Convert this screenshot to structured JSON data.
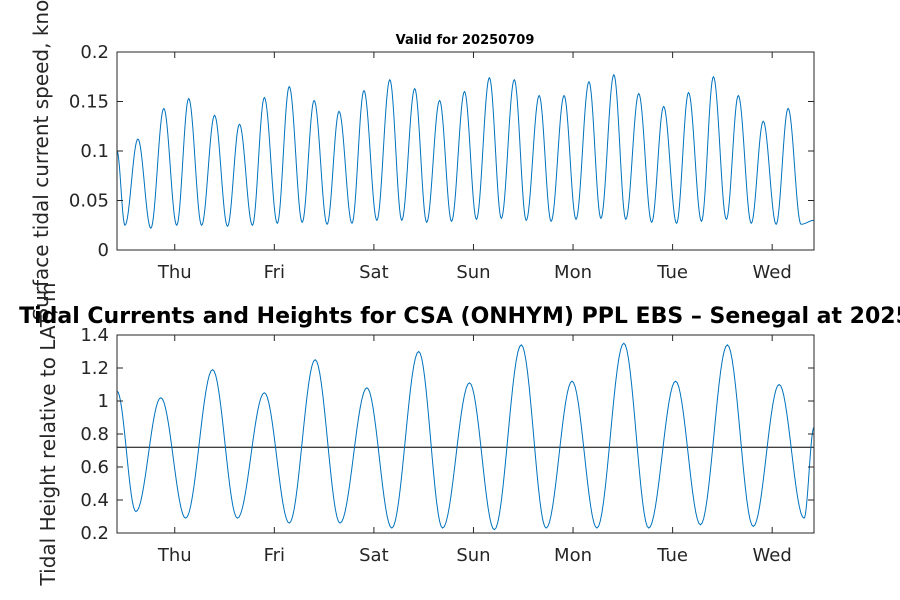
{
  "figure": {
    "main_title": "Tidal Currents and Heights for CSA (ONHYM) PPL EBS  – Senegal at 2025",
    "day_labels": [
      "Thu",
      "Fri",
      "Sat",
      "Sun",
      "Mon",
      "Tue",
      "Wed"
    ]
  },
  "chart_data": [
    {
      "type": "line",
      "title": "Valid for 20250709",
      "ylabel": "Surface tidal current speed, knots",
      "xlabel": "",
      "x_unit": "days since Wed 20250709 00:00",
      "xlim": [
        0,
        7
      ],
      "ylim": [
        0,
        0.2
      ],
      "yticks": [
        0,
        0.05,
        0.1,
        0.15,
        0.2
      ],
      "ytick_labels": [
        "0",
        "0.05",
        "0.1",
        "0.15",
        "0.2"
      ],
      "grid": false,
      "line_color": "#0072BD",
      "series": [
        {
          "x": [
            0.0,
            0.08,
            0.21,
            0.34,
            0.47,
            0.6,
            0.72,
            0.85,
            0.98,
            1.11,
            1.23,
            1.36,
            1.48,
            1.61,
            1.73,
            1.86,
            1.98,
            2.11,
            2.23,
            2.36,
            2.48,
            2.61,
            2.74,
            2.86,
            2.99,
            3.11,
            3.24,
            3.36,
            3.49,
            3.61,
            3.74,
            3.86,
            3.99,
            4.11,
            4.24,
            4.36,
            4.49,
            4.61,
            4.74,
            4.86,
            4.99,
            5.11,
            5.24,
            5.37,
            5.49,
            5.62,
            5.74,
            5.87,
            5.99,
            6.12,
            6.24,
            6.37,
            6.49,
            6.62,
            6.74,
            6.87,
            7.0
          ],
          "y": [
            0.1,
            0.025,
            0.112,
            0.022,
            0.143,
            0.025,
            0.153,
            0.025,
            0.136,
            0.024,
            0.127,
            0.025,
            0.154,
            0.027,
            0.165,
            0.028,
            0.151,
            0.026,
            0.14,
            0.027,
            0.161,
            0.03,
            0.172,
            0.03,
            0.163,
            0.028,
            0.151,
            0.029,
            0.16,
            0.031,
            0.174,
            0.032,
            0.172,
            0.03,
            0.156,
            0.029,
            0.156,
            0.031,
            0.17,
            0.032,
            0.177,
            0.031,
            0.158,
            0.028,
            0.145,
            0.027,
            0.159,
            0.029,
            0.175,
            0.031,
            0.156,
            0.027,
            0.13,
            0.026,
            0.143,
            0.026,
            0.03
          ]
        }
      ]
    },
    {
      "type": "line",
      "title": "",
      "ylabel": "Tidal Height relative to LAT, m",
      "xlabel": "",
      "x_unit": "days since Wed 20250709 00:00",
      "xlim": [
        0,
        7
      ],
      "ylim": [
        0.2,
        1.4
      ],
      "yticks": [
        0.2,
        0.4,
        0.6,
        0.8,
        1,
        1.2,
        1.4
      ],
      "ytick_labels": [
        "0.2",
        "0.4",
        "0.6",
        "0.8",
        "1",
        "1.2",
        "1.4"
      ],
      "grid": false,
      "line_color": "#0072BD",
      "reference_line": {
        "y": 0.72,
        "color": "#000000"
      },
      "series": [
        {
          "x": [
            0.0,
            0.19,
            0.44,
            0.69,
            0.96,
            1.21,
            1.48,
            1.73,
            1.99,
            2.24,
            2.51,
            2.76,
            3.03,
            3.27,
            3.54,
            3.79,
            4.06,
            4.31,
            4.57,
            4.82,
            5.09,
            5.34,
            5.61,
            5.86,
            6.13,
            6.39,
            6.65,
            6.9,
            7.0
          ],
          "y": [
            1.06,
            0.33,
            1.02,
            0.29,
            1.19,
            0.29,
            1.05,
            0.26,
            1.25,
            0.26,
            1.08,
            0.23,
            1.3,
            0.23,
            1.11,
            0.22,
            1.34,
            0.23,
            1.12,
            0.23,
            1.35,
            0.23,
            1.12,
            0.25,
            1.34,
            0.24,
            1.1,
            0.29,
            0.84
          ]
        }
      ]
    }
  ]
}
